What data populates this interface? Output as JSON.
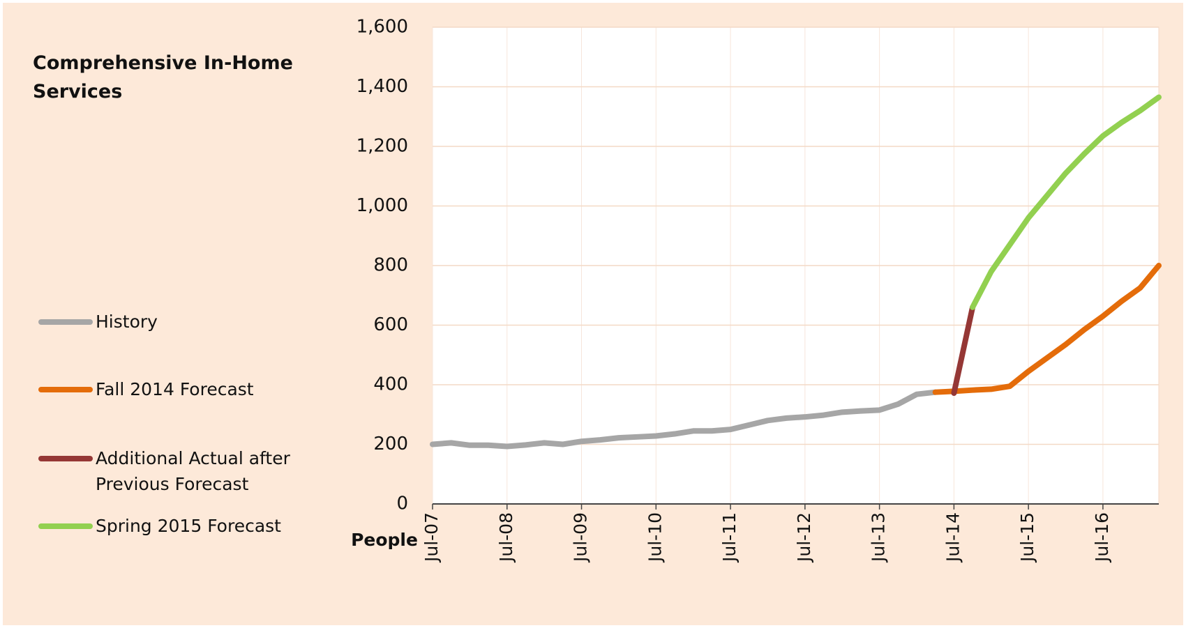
{
  "chart_data": {
    "type": "line",
    "title": "Comprehensive In-Home Services",
    "ylabel": "People",
    "categories": [
      "Jul-07",
      null,
      null,
      null,
      "Jul-08",
      null,
      null,
      null,
      "Jul-09",
      null,
      null,
      null,
      "Jul-10",
      null,
      null,
      null,
      "Jul-11",
      null,
      null,
      null,
      "Jul-12",
      null,
      null,
      null,
      "Jul-13",
      null,
      null,
      null,
      "Jul-14",
      null,
      null,
      null,
      "Jul-15",
      null,
      null,
      null,
      "Jul-16",
      null,
      null,
      null
    ],
    "series": [
      {
        "name": "History",
        "color": "#a6a6a6",
        "values": [
          200,
          205,
          197,
          197,
          193,
          198,
          205,
          200,
          210,
          215,
          222,
          225,
          228,
          235,
          245,
          245,
          250,
          265,
          280,
          288,
          292,
          298,
          308,
          312,
          315,
          335,
          368,
          375,
          null,
          null,
          null,
          null,
          null,
          null,
          null,
          null,
          null,
          null,
          null,
          null
        ]
      },
      {
        "name": "Fall 2014 Forecast",
        "color": "#e46c0a",
        "values": [
          null,
          null,
          null,
          null,
          null,
          null,
          null,
          null,
          null,
          null,
          null,
          null,
          null,
          null,
          null,
          null,
          null,
          null,
          null,
          null,
          null,
          null,
          null,
          null,
          null,
          null,
          null,
          375,
          378,
          382,
          385,
          395,
          445,
          490,
          535,
          585,
          630,
          680,
          725,
          800
        ]
      },
      {
        "name": "Additional Actual after Previous Forecast",
        "color": "#953735",
        "values": [
          null,
          null,
          null,
          null,
          null,
          null,
          null,
          null,
          null,
          null,
          null,
          null,
          null,
          null,
          null,
          null,
          null,
          null,
          null,
          null,
          null,
          null,
          null,
          null,
          null,
          null,
          null,
          null,
          372,
          660,
          null,
          null,
          null,
          null,
          null,
          null,
          null,
          null,
          null,
          null
        ]
      },
      {
        "name": "Spring 2015 Forecast",
        "color": "#92d050",
        "values": [
          null,
          null,
          null,
          null,
          null,
          null,
          null,
          null,
          null,
          null,
          null,
          null,
          null,
          null,
          null,
          null,
          null,
          null,
          null,
          null,
          null,
          null,
          null,
          null,
          null,
          null,
          null,
          null,
          null,
          660,
          780,
          870,
          960,
          1035,
          1110,
          1175,
          1235,
          1280,
          1320,
          1365
        ]
      }
    ],
    "ylim": [
      0,
      1600
    ],
    "yticks": [
      0,
      200,
      400,
      600,
      800,
      {
        "value": 1000,
        "label": "1,000"
      },
      {
        "value": 1200,
        "label": "1,200"
      },
      {
        "value": 1400,
        "label": "1,400"
      },
      {
        "value": 1600,
        "label": "1,600"
      }
    ],
    "grid": true
  }
}
